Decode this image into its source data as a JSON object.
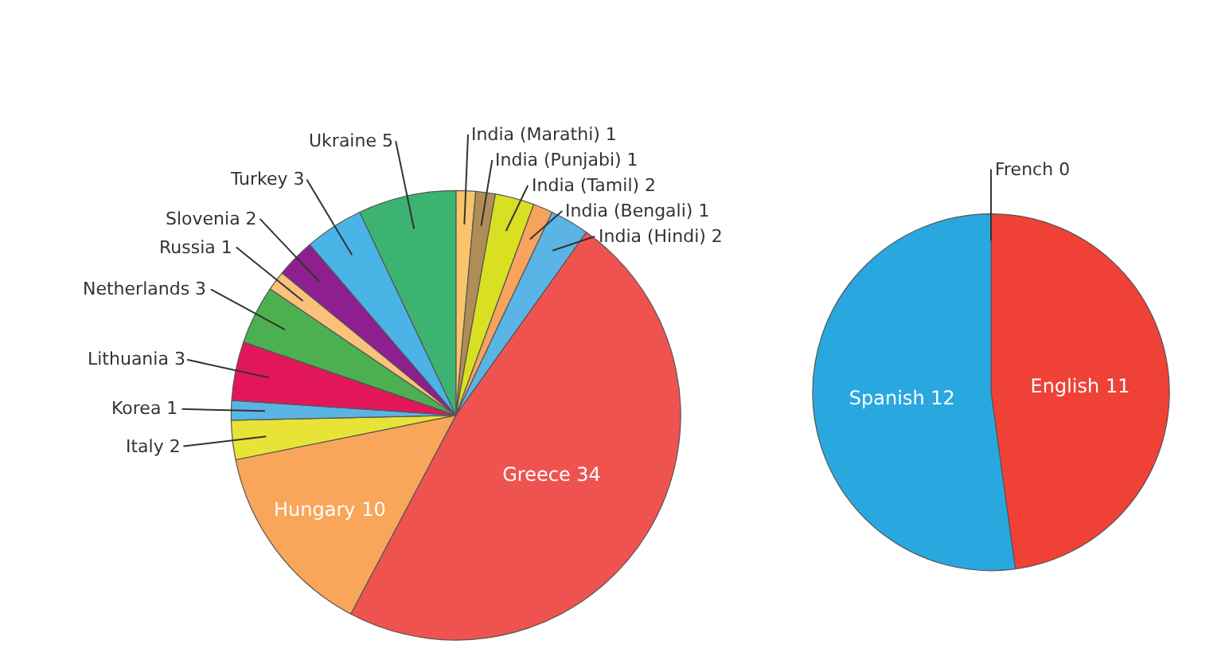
{
  "chart_data": [
    {
      "type": "pie",
      "categories": [
        "India (Marathi) 1",
        "India (Punjabi) 1",
        "India (Tamil) 2",
        "India (Bengali) 1",
        "India (Hindi) 2",
        "Greece 34",
        "Hungary 10",
        "Italy 2",
        "Korea 1",
        "Lithuania 3",
        "Netherlands 3",
        "Russia 1",
        "Slovenia 2",
        "Turkey 3",
        "Ukraine 5"
      ],
      "values": [
        1,
        1,
        2,
        1,
        2,
        34,
        10,
        2,
        1,
        3,
        3,
        1,
        2,
        3,
        5
      ],
      "colors": [
        "#f9c46b",
        "#b08d57",
        "#d9e021",
        "#f7a35c",
        "#5ab4e5",
        "#ef5350",
        "#f9a65a",
        "#e8e337",
        "#5ab4e5",
        "#e2175a",
        "#4cb050",
        "#f9c17a",
        "#8e1f8f",
        "#4bb4e6",
        "#3cb371"
      ]
    },
    {
      "type": "pie",
      "categories": [
        "French 0",
        "English 11",
        "Spanish 12"
      ],
      "values": [
        0,
        11,
        12
      ],
      "colors": [
        "#ffffff",
        "#ef4136",
        "#29a8e0"
      ]
    }
  ]
}
